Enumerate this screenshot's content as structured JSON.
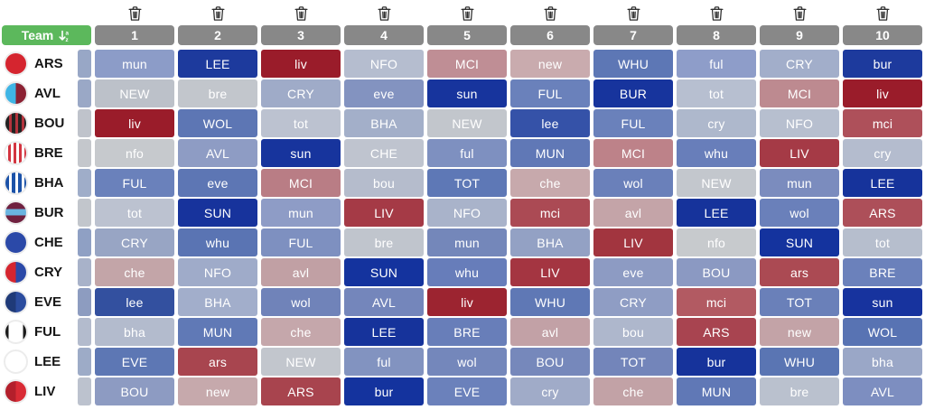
{
  "colors": {
    "accent_green": "#5cb85c",
    "header_gray": "#888888",
    "trash_icon": "#2f2f2f",
    "fixture_text": "#ffffff"
  },
  "header": {
    "team_label": "Team",
    "sort_icon": "sort-a-z-descending",
    "gameweeks": [
      "1",
      "2",
      "3",
      "4",
      "5",
      "6",
      "7",
      "8",
      "9",
      "10"
    ]
  },
  "teams": [
    {
      "code": "ARS",
      "badge": "#d5252f",
      "sliver": "#98a7c6",
      "fixtures": [
        {
          "o": "mun",
          "c": "#8c9cc8"
        },
        {
          "o": "LEE",
          "c": "#1d3a9d"
        },
        {
          "o": "liv",
          "c": "#9a1c2a"
        },
        {
          "o": "NFO",
          "c": "#b5bdcf"
        },
        {
          "o": "MCI",
          "c": "#bf8e95"
        },
        {
          "o": "new",
          "c": "#c9abae"
        },
        {
          "o": "WHU",
          "c": "#5d77b5"
        },
        {
          "o": "ful",
          "c": "#8e9dc9"
        },
        {
          "o": "CRY",
          "c": "#a2aeca"
        },
        {
          "o": "bur",
          "c": "#1d3a9d"
        }
      ]
    },
    {
      "code": "AVL",
      "badge": "linear-gradient(90deg,#3fb5e5 50%,#8b2133 50%)",
      "sliver": "#9aa8c6",
      "fixtures": [
        {
          "o": "NEW",
          "c": "#bcc1c9"
        },
        {
          "o": "bre",
          "c": "#c2c6cc"
        },
        {
          "o": "CRY",
          "c": "#9fabc8"
        },
        {
          "o": "eve",
          "c": "#8393c0"
        },
        {
          "o": "sun",
          "c": "#17349d"
        },
        {
          "o": "FUL",
          "c": "#6a81bb"
        },
        {
          "o": "BUR",
          "c": "#17349d"
        },
        {
          "o": "tot",
          "c": "#b7bfd0"
        },
        {
          "o": "MCI",
          "c": "#bd8a90"
        },
        {
          "o": "liv",
          "c": "#9a1c2a"
        }
      ]
    },
    {
      "code": "BOU",
      "badge": "repeating-linear-gradient(90deg,#222222 0 4px,#b2333c 4px 7px)",
      "sliver": "#bfc3cb",
      "fixtures": [
        {
          "o": "liv",
          "c": "#9a1c2a"
        },
        {
          "o": "WOL",
          "c": "#5d76b4"
        },
        {
          "o": "tot",
          "c": "#bcc2d0"
        },
        {
          "o": "BHA",
          "c": "#a3afc9"
        },
        {
          "o": "NEW",
          "c": "#c2c6cc"
        },
        {
          "o": "lee",
          "c": "#3552a8"
        },
        {
          "o": "FUL",
          "c": "#6a81bb"
        },
        {
          "o": "cry",
          "c": "#aeb8cc"
        },
        {
          "o": "NFO",
          "c": "#b7bfcf"
        },
        {
          "o": "mci",
          "c": "#ae505a"
        }
      ]
    },
    {
      "code": "BRE",
      "badge": "repeating-linear-gradient(90deg,#ffffff 0 3px,#d3343f 3px 6px)",
      "sliver": "#c4c7cc",
      "fixtures": [
        {
          "o": "nfo",
          "c": "#c6c9cd"
        },
        {
          "o": "AVL",
          "c": "#8e9cc4"
        },
        {
          "o": "sun",
          "c": "#17349d"
        },
        {
          "o": "CHE",
          "c": "#bfc4cf"
        },
        {
          "o": "ful",
          "c": "#7e90c0"
        },
        {
          "o": "MUN",
          "c": "#6078b6"
        },
        {
          "o": "MCI",
          "c": "#bd8289"
        },
        {
          "o": "whu",
          "c": "#687eba"
        },
        {
          "o": "LIV",
          "c": "#a53a46"
        },
        {
          "o": "cry",
          "c": "#b4bcce"
        }
      ]
    },
    {
      "code": "BHA",
      "badge": "repeating-linear-gradient(90deg,#1b52a8 0 4px,#ffffff 4px 7px)",
      "sliver": "#9fadc9",
      "fixtures": [
        {
          "o": "FUL",
          "c": "#6a81bb"
        },
        {
          "o": "eve",
          "c": "#5d76b4"
        },
        {
          "o": "MCI",
          "c": "#b97d85"
        },
        {
          "o": "bou",
          "c": "#b5bccc"
        },
        {
          "o": "TOT",
          "c": "#5e78b6"
        },
        {
          "o": "che",
          "c": "#c7a9ac"
        },
        {
          "o": "wol",
          "c": "#6a80ba"
        },
        {
          "o": "NEW",
          "c": "#c3c7cd"
        },
        {
          "o": "mun",
          "c": "#7b8cbe"
        },
        {
          "o": "LEE",
          "c": "#16339b"
        }
      ]
    },
    {
      "code": "BUR",
      "badge": "linear-gradient(180deg,#70203f 0 32%,#6ab4e0 32% 62%,#70203f 62%)",
      "sliver": "#c2c6cc",
      "fixtures": [
        {
          "o": "tot",
          "c": "#bcc2d0"
        },
        {
          "o": "SUN",
          "c": "#17339c"
        },
        {
          "o": "mun",
          "c": "#8e9cc6"
        },
        {
          "o": "LIV",
          "c": "#a53a46"
        },
        {
          "o": "NFO",
          "c": "#a9b3ca"
        },
        {
          "o": "mci",
          "c": "#ab4a54"
        },
        {
          "o": "avl",
          "c": "#c4a4a8"
        },
        {
          "o": "LEE",
          "c": "#16339b"
        },
        {
          "o": "wol",
          "c": "#6a80ba"
        },
        {
          "o": "ARS",
          "c": "#ad4f59"
        }
      ]
    },
    {
      "code": "CHE",
      "badge": "#2b49a8",
      "sliver": "#8fa0c4",
      "fixtures": [
        {
          "o": "CRY",
          "c": "#98a5c4"
        },
        {
          "o": "whu",
          "c": "#5a74b3"
        },
        {
          "o": "FUL",
          "c": "#7e90c0"
        },
        {
          "o": "bre",
          "c": "#c0c5cd"
        },
        {
          "o": "mun",
          "c": "#7487ba"
        },
        {
          "o": "BHA",
          "c": "#93a1c4"
        },
        {
          "o": "LIV",
          "c": "#a2353f"
        },
        {
          "o": "nfo",
          "c": "#c7cacd"
        },
        {
          "o": "SUN",
          "c": "#14339e"
        },
        {
          "o": "tot",
          "c": "#b6becd"
        }
      ]
    },
    {
      "code": "CRY",
      "badge": "linear-gradient(90deg,#d5252f 50%,#2b49a8 50%)",
      "sliver": "#a8b2c9",
      "fixtures": [
        {
          "o": "che",
          "c": "#c3a5a8"
        },
        {
          "o": "NFO",
          "c": "#9fabc9"
        },
        {
          "o": "avl",
          "c": "#c1a0a4"
        },
        {
          "o": "SUN",
          "c": "#14339e"
        },
        {
          "o": "whu",
          "c": "#677dba"
        },
        {
          "o": "LIV",
          "c": "#a43541"
        },
        {
          "o": "eve",
          "c": "#8d9bc3"
        },
        {
          "o": "BOU",
          "c": "#8b99c2"
        },
        {
          "o": "ars",
          "c": "#ab4a53"
        },
        {
          "o": "BRE",
          "c": "#6b81bb"
        }
      ]
    },
    {
      "code": "EVE",
      "badge": "linear-gradient(90deg,#1f3a78 50%,#2b4c9e 50%)",
      "sliver": "#8d9cc0",
      "fixtures": [
        {
          "o": "lee",
          "c": "#33509f"
        },
        {
          "o": "BHA",
          "c": "#a2aecb"
        },
        {
          "o": "wol",
          "c": "#7083b9"
        },
        {
          "o": "AVL",
          "c": "#7486bb"
        },
        {
          "o": "liv",
          "c": "#9c2430"
        },
        {
          "o": "WHU",
          "c": "#5f78b5"
        },
        {
          "o": "CRY",
          "c": "#8f9dc4"
        },
        {
          "o": "mci",
          "c": "#b25a62"
        },
        {
          "o": "TOT",
          "c": "#6a80b9"
        },
        {
          "o": "sun",
          "c": "#17339e"
        }
      ]
    },
    {
      "code": "FUL",
      "badge": "linear-gradient(90deg,#1a1a1a 0 15%,#ffffff 15% 85%,#1a1a1a 85%)",
      "sliver": "#b3bbcd",
      "fixtures": [
        {
          "o": "bha",
          "c": "#b3bbcd"
        },
        {
          "o": "MUN",
          "c": "#6079b6"
        },
        {
          "o": "che",
          "c": "#c5a7ab"
        },
        {
          "o": "LEE",
          "c": "#16339b"
        },
        {
          "o": "BRE",
          "c": "#687eb9"
        },
        {
          "o": "avl",
          "c": "#c2a1a6"
        },
        {
          "o": "bou",
          "c": "#aeb7cc"
        },
        {
          "o": "ARS",
          "c": "#a84450"
        },
        {
          "o": "new",
          "c": "#c3a3a7"
        },
        {
          "o": "WOL",
          "c": "#5873b3"
        }
      ]
    },
    {
      "code": "LEE",
      "badge": "#ffffff",
      "sliver": "#9dabc7",
      "fixtures": [
        {
          "o": "EVE",
          "c": "#5d77b4"
        },
        {
          "o": "ars",
          "c": "#a8454f"
        },
        {
          "o": "NEW",
          "c": "#c2c6cd"
        },
        {
          "o": "ful",
          "c": "#8293c0"
        },
        {
          "o": "wol",
          "c": "#7487bb"
        },
        {
          "o": "BOU",
          "c": "#7688bb"
        },
        {
          "o": "TOT",
          "c": "#7385ba"
        },
        {
          "o": "bur",
          "c": "#16339b"
        },
        {
          "o": "WHU",
          "c": "#5a75b3"
        },
        {
          "o": "bha",
          "c": "#9aa7c7"
        }
      ]
    },
    {
      "code": "LIV",
      "badge": "linear-gradient(90deg,#b31f2b 50%,#d92b35 50%)",
      "sliver": "#bcc2ce",
      "fixtures": [
        {
          "o": "BOU",
          "c": "#8d9bc2"
        },
        {
          "o": "new",
          "c": "#c6a9ac"
        },
        {
          "o": "ARS",
          "c": "#a8444e"
        },
        {
          "o": "bur",
          "c": "#14339e"
        },
        {
          "o": "EVE",
          "c": "#6b81bb"
        },
        {
          "o": "cry",
          "c": "#a0abc8"
        },
        {
          "o": "che",
          "c": "#c2a2a6"
        },
        {
          "o": "MUN",
          "c": "#6078b6"
        },
        {
          "o": "bre",
          "c": "#bac1ce"
        },
        {
          "o": "AVL",
          "c": "#7d8ec0"
        }
      ]
    }
  ]
}
